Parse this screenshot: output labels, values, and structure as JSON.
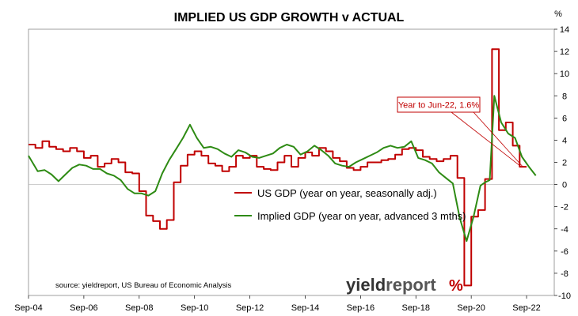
{
  "chart_data": {
    "type": "line",
    "title": "IMPLIED US GDP GROWTH v ACTUAL",
    "y_unit": "%",
    "ylim": [
      -10,
      14
    ],
    "y_ticks": [
      -10,
      -8,
      -6,
      -4,
      -2,
      0,
      2,
      4,
      6,
      8,
      10,
      12,
      14
    ],
    "xlim": [
      "2004-09",
      "2023-09"
    ],
    "x_ticks": [
      {
        "label": "Sep-04",
        "date": "2004-09"
      },
      {
        "label": "Sep-06",
        "date": "2006-09"
      },
      {
        "label": "Sep-08",
        "date": "2008-09"
      },
      {
        "label": "Sep-10",
        "date": "2010-09"
      },
      {
        "label": "Sep-12",
        "date": "2012-09"
      },
      {
        "label": "Sep-14",
        "date": "2014-09"
      },
      {
        "label": "Sep-16",
        "date": "2016-09"
      },
      {
        "label": "Sep-18",
        "date": "2018-09"
      },
      {
        "label": "Sep-20",
        "date": "2020-09"
      },
      {
        "label": "Sep-22",
        "date": "2022-09"
      }
    ],
    "grid": false,
    "legend_position": "center",
    "series": [
      {
        "name": "US GDP (year on year, seasonally adj.)",
        "color": "#c00000",
        "step": true,
        "points": [
          [
            "2004-09",
            3.6
          ],
          [
            "2004-12",
            3.3
          ],
          [
            "2005-03",
            3.9
          ],
          [
            "2005-06",
            3.4
          ],
          [
            "2005-09",
            3.2
          ],
          [
            "2005-12",
            3.0
          ],
          [
            "2006-03",
            3.3
          ],
          [
            "2006-06",
            3.0
          ],
          [
            "2006-09",
            2.4
          ],
          [
            "2006-12",
            2.6
          ],
          [
            "2007-03",
            1.6
          ],
          [
            "2007-06",
            1.9
          ],
          [
            "2007-09",
            2.3
          ],
          [
            "2007-12",
            2.0
          ],
          [
            "2008-03",
            1.1
          ],
          [
            "2008-06",
            1.0
          ],
          [
            "2008-09",
            -0.6
          ],
          [
            "2008-12",
            -2.8
          ],
          [
            "2009-03",
            -3.3
          ],
          [
            "2009-06",
            -4.0
          ],
          [
            "2009-09",
            -3.2
          ],
          [
            "2009-12",
            0.2
          ],
          [
            "2010-03",
            1.7
          ],
          [
            "2010-06",
            2.7
          ],
          [
            "2010-09",
            3.0
          ],
          [
            "2010-12",
            2.6
          ],
          [
            "2011-03",
            1.9
          ],
          [
            "2011-06",
            1.7
          ],
          [
            "2011-09",
            1.2
          ],
          [
            "2011-12",
            1.6
          ],
          [
            "2012-03",
            2.6
          ],
          [
            "2012-06",
            2.4
          ],
          [
            "2012-09",
            2.6
          ],
          [
            "2012-12",
            1.6
          ],
          [
            "2013-03",
            1.4
          ],
          [
            "2013-06",
            1.3
          ],
          [
            "2013-09",
            2.0
          ],
          [
            "2013-12",
            2.6
          ],
          [
            "2014-03",
            1.6
          ],
          [
            "2014-06",
            2.4
          ],
          [
            "2014-09",
            2.9
          ],
          [
            "2014-12",
            2.6
          ],
          [
            "2015-03",
            3.3
          ],
          [
            "2015-06",
            3.0
          ],
          [
            "2015-09",
            2.4
          ],
          [
            "2015-12",
            2.1
          ],
          [
            "2016-03",
            1.5
          ],
          [
            "2016-06",
            1.3
          ],
          [
            "2016-09",
            1.6
          ],
          [
            "2016-12",
            2.0
          ],
          [
            "2017-03",
            2.0
          ],
          [
            "2017-06",
            2.2
          ],
          [
            "2017-09",
            2.3
          ],
          [
            "2017-12",
            2.7
          ],
          [
            "2018-03",
            3.2
          ],
          [
            "2018-06",
            3.3
          ],
          [
            "2018-09",
            3.1
          ],
          [
            "2018-12",
            2.5
          ],
          [
            "2019-03",
            2.3
          ],
          [
            "2019-06",
            2.1
          ],
          [
            "2019-09",
            2.3
          ],
          [
            "2019-12",
            2.6
          ],
          [
            "2020-03",
            0.6
          ],
          [
            "2020-06",
            -9.1
          ],
          [
            "2020-09",
            -2.9
          ],
          [
            "2020-12",
            -2.3
          ],
          [
            "2021-03",
            0.5
          ],
          [
            "2021-06",
            12.2
          ],
          [
            "2021-09",
            4.9
          ],
          [
            "2021-12",
            5.6
          ],
          [
            "2022-03",
            3.5
          ],
          [
            "2022-06",
            1.6
          ]
        ]
      },
      {
        "name": "Implied GDP (year on year, advanced 3 mths)",
        "color": "#2e8b14",
        "points": [
          [
            "2004-09",
            2.6
          ],
          [
            "2005-01",
            1.2
          ],
          [
            "2005-04",
            1.3
          ],
          [
            "2005-07",
            0.9
          ],
          [
            "2005-10",
            0.3
          ],
          [
            "2006-01",
            0.9
          ],
          [
            "2006-04",
            1.5
          ],
          [
            "2006-07",
            1.8
          ],
          [
            "2006-10",
            1.7
          ],
          [
            "2007-01",
            1.4
          ],
          [
            "2007-04",
            1.4
          ],
          [
            "2007-07",
            1.0
          ],
          [
            "2007-10",
            0.8
          ],
          [
            "2008-01",
            0.4
          ],
          [
            "2008-04",
            -0.4
          ],
          [
            "2008-07",
            -0.8
          ],
          [
            "2008-10",
            -0.8
          ],
          [
            "2009-01",
            -1.0
          ],
          [
            "2009-04",
            -0.6
          ],
          [
            "2009-07",
            1.0
          ],
          [
            "2009-10",
            2.2
          ],
          [
            "2010-01",
            3.2
          ],
          [
            "2010-04",
            4.2
          ],
          [
            "2010-07",
            5.4
          ],
          [
            "2010-10",
            4.2
          ],
          [
            "2011-01",
            3.3
          ],
          [
            "2011-04",
            3.4
          ],
          [
            "2011-07",
            3.2
          ],
          [
            "2011-10",
            2.8
          ],
          [
            "2012-01",
            2.5
          ],
          [
            "2012-04",
            3.1
          ],
          [
            "2012-07",
            2.9
          ],
          [
            "2012-10",
            2.5
          ],
          [
            "2013-01",
            2.4
          ],
          [
            "2013-04",
            2.6
          ],
          [
            "2013-07",
            2.8
          ],
          [
            "2013-10",
            3.3
          ],
          [
            "2014-01",
            3.6
          ],
          [
            "2014-04",
            3.4
          ],
          [
            "2014-07",
            2.7
          ],
          [
            "2014-10",
            3.0
          ],
          [
            "2015-01",
            3.5
          ],
          [
            "2015-04",
            3.1
          ],
          [
            "2015-07",
            2.6
          ],
          [
            "2015-10",
            1.9
          ],
          [
            "2016-01",
            1.7
          ],
          [
            "2016-04",
            1.6
          ],
          [
            "2016-07",
            2.0
          ],
          [
            "2016-10",
            2.3
          ],
          [
            "2017-01",
            2.6
          ],
          [
            "2017-04",
            2.9
          ],
          [
            "2017-07",
            3.3
          ],
          [
            "2017-10",
            3.5
          ],
          [
            "2018-01",
            3.3
          ],
          [
            "2018-04",
            3.4
          ],
          [
            "2018-07",
            3.9
          ],
          [
            "2018-10",
            2.4
          ],
          [
            "2019-01",
            2.2
          ],
          [
            "2019-04",
            1.9
          ],
          [
            "2019-07",
            1.1
          ],
          [
            "2019-10",
            0.6
          ],
          [
            "2020-01",
            0.1
          ],
          [
            "2020-04",
            -3.0
          ],
          [
            "2020-07",
            -5.1
          ],
          [
            "2020-10",
            -2.9
          ],
          [
            "2021-01",
            -0.1
          ],
          [
            "2021-03",
            0.2
          ],
          [
            "2021-05",
            0.4
          ],
          [
            "2021-07",
            8.0
          ],
          [
            "2021-10",
            5.6
          ],
          [
            "2022-01",
            4.6
          ],
          [
            "2022-04",
            4.2
          ],
          [
            "2022-07",
            2.5
          ],
          [
            "2022-10",
            1.6
          ],
          [
            "2023-01",
            0.8
          ]
        ]
      }
    ],
    "annotation": {
      "text": "Year to Jun-22, 1.6%",
      "date": "2022-06",
      "value": 1.6
    },
    "source": "source: yieldreport, US Bureau of Economic Analysis"
  },
  "logo": {
    "part1": "yield",
    "part2": "report",
    "symbol": "%"
  },
  "colors": {
    "accent_red": "#c00000",
    "accent_green": "#2e8b14"
  }
}
